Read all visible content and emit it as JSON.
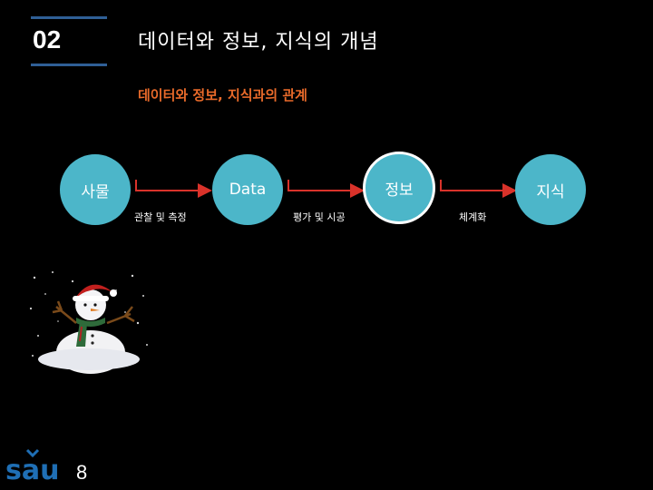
{
  "header": {
    "number": "02",
    "title": "데이터와 정보, 지식의 개념"
  },
  "subtitle": "데이터와 정보, 지식과의 관계",
  "diagram": {
    "nodes": [
      {
        "label": "사물"
      },
      {
        "label": "Data"
      },
      {
        "label": "정보"
      },
      {
        "label": "지식"
      }
    ],
    "edges": [
      {
        "label": "관찰 및 측정"
      },
      {
        "label": "평가 및 시공"
      },
      {
        "label": "체계화"
      }
    ]
  },
  "footer": {
    "logo_text": "sau",
    "page": "8"
  },
  "colors": {
    "accent_rule": "#2f5f96",
    "node_fill": "#4cb6c9",
    "subtitle": "#e86a2a",
    "arrow": "#d9322a"
  }
}
